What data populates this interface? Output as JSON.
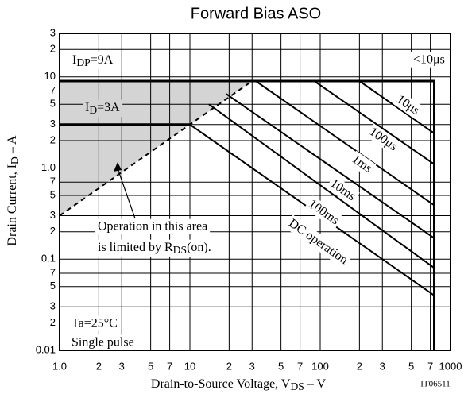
{
  "chart_data": {
    "type": "line",
    "title": "Forward Bias ASO",
    "x_label": {
      "text": "Drain-to-Source Voltage, V",
      "sub": "DS",
      "after": " – V"
    },
    "y_label": {
      "text": "Drain Current, I",
      "sub": "D",
      "after": " – A"
    },
    "xlim": [
      1,
      1000
    ],
    "ylim": [
      0.01,
      30
    ],
    "log_x": true,
    "log_y": true,
    "grid": true,
    "color": "#000000",
    "shade_color": "#d4d4d4",
    "xticks": [
      {
        "value": 1,
        "label": "1.0"
      },
      2,
      3,
      5,
      7,
      10,
      {
        "value": 20,
        "label": "2"
      },
      {
        "value": 30,
        "label": "3"
      },
      {
        "value": 50,
        "label": "5"
      },
      {
        "value": 70,
        "label": "7"
      },
      100,
      {
        "value": 200,
        "label": "2"
      },
      {
        "value": 300,
        "label": "3"
      },
      {
        "value": 500,
        "label": "5"
      },
      {
        "value": 700,
        "label": "7"
      },
      1000
    ],
    "yticks": [
      {
        "value": 30,
        "label": "3"
      },
      {
        "value": 20,
        "label": "2"
      },
      10,
      7,
      5,
      3,
      2,
      {
        "value": 1,
        "label": "1.0"
      },
      {
        "value": 0.7,
        "label": "7"
      },
      {
        "value": 0.5,
        "label": "5"
      },
      {
        "value": 0.3,
        "label": "3"
      },
      {
        "value": 0.2,
        "label": "2"
      },
      0.1,
      {
        "value": 0.07,
        "label": "7"
      },
      {
        "value": 0.05,
        "label": "5"
      },
      {
        "value": 0.03,
        "label": "3"
      },
      {
        "value": 0.02,
        "label": "2"
      },
      0.01
    ],
    "series": [
      {
        "x": [
          1,
          750,
          750
        ],
        "values": [
          9,
          9,
          0.01
        ],
        "width": 3
      },
      {
        "x": [
          1,
          10
        ],
        "values": [
          3,
          3
        ],
        "width": 3
      },
      {
        "x": [
          1,
          30
        ],
        "values": [
          0.3,
          9
        ],
        "width": 2,
        "dashed": true
      },
      {
        "name": "10μs",
        "x": [
          200,
          750
        ],
        "values": [
          9,
          2.4
        ],
        "width": 2
      },
      {
        "name": "100μs",
        "x": [
          90,
          750
        ],
        "values": [
          9,
          1.1
        ],
        "width": 2
      },
      {
        "name": "1ms",
        "x": [
          32,
          750
        ],
        "values": [
          9,
          0.39
        ],
        "width": 2
      },
      {
        "name": "10ms",
        "x": [
          19,
          750
        ],
        "values": [
          6.5,
          0.17
        ],
        "width": 2
      },
      {
        "name": "100ms",
        "x": [
          14,
          750
        ],
        "values": [
          5,
          0.08
        ],
        "width": 2
      },
      {
        "name": "DC operation",
        "x": [
          10,
          750
        ],
        "values": [
          3,
          0.04
        ],
        "width": 2
      }
    ],
    "idp_label": {
      "text": "I",
      "sub": "DP",
      "after": "=9A"
    },
    "id_label": {
      "text": "I",
      "sub": "D",
      "after": "=3A"
    },
    "top_label": "<10μs",
    "note": {
      "line1": "Operation in this area",
      "text": "is limited by R",
      "sub": "DS",
      "after": "(on)."
    },
    "conditions": [
      "Ta=25°C",
      "Single pulse"
    ],
    "code": "IT06511"
  }
}
